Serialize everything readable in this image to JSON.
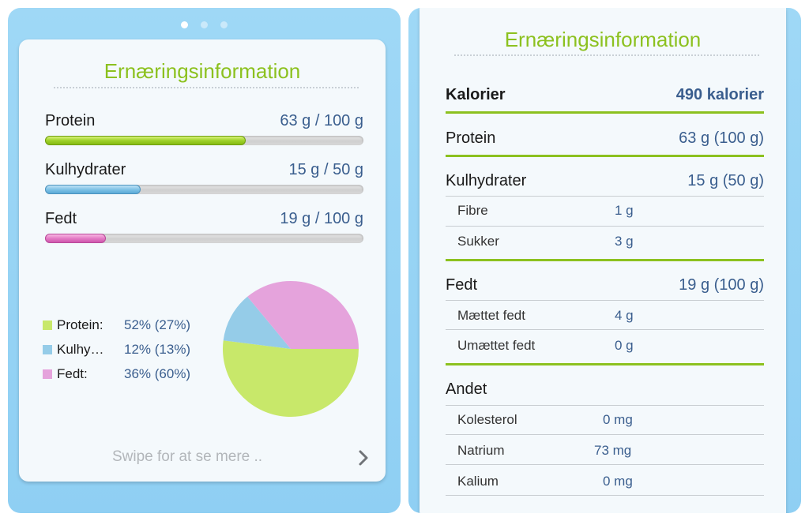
{
  "left": {
    "pager": {
      "count": 3,
      "active": 0
    },
    "title": "Ernæringsinformation",
    "bars": [
      {
        "label": "Protein",
        "value": "63 g / 100 g",
        "fraction": 0.63,
        "color": "#9fd22a"
      },
      {
        "label": "Kulhydrater",
        "value": "15 g / 50 g",
        "fraction": 0.3,
        "color": "#80c3e6"
      },
      {
        "label": "Fedt",
        "value": "19 g / 100 g",
        "fraction": 0.19,
        "color": "#e47cc6"
      }
    ],
    "legend": [
      {
        "name": "Protein:",
        "pct": "52% (27%)",
        "color": "#c8e86a"
      },
      {
        "name": "Kulhy…",
        "pct": "12% (13%)",
        "color": "#95cce8"
      },
      {
        "name": "Fedt:",
        "pct": "36% (60%)",
        "color": "#e5a3dc"
      }
    ],
    "swipe_text": "Swipe for at se mere .."
  },
  "chart_data": {
    "type": "pie",
    "slices": [
      {
        "name": "Protein",
        "value": 52,
        "color": "#c8e86a"
      },
      {
        "name": "Kulhydrater",
        "value": 12,
        "color": "#95cce8"
      },
      {
        "name": "Fedt",
        "value": 36,
        "color": "#e5a3dc"
      }
    ]
  },
  "right": {
    "title": "Ernæringsinformation",
    "kalorier": {
      "label": "Kalorier",
      "value": "490 kalorier"
    },
    "protein": {
      "label": "Protein",
      "value": "63 g (100 g)"
    },
    "kulhydrater": {
      "label": "Kulhydrater",
      "value": "15 g (50 g)",
      "sub": [
        {
          "label": "Fibre",
          "value": "1 g"
        },
        {
          "label": "Sukker",
          "value": "3 g"
        }
      ]
    },
    "fedt": {
      "label": "Fedt",
      "value": "19 g (100 g)",
      "sub": [
        {
          "label": "Mættet fedt",
          "value": "4 g"
        },
        {
          "label": "Umættet fedt",
          "value": "0 g"
        }
      ]
    },
    "andet": {
      "label": "Andet",
      "sub": [
        {
          "label": "Kolesterol",
          "value": "0 mg"
        },
        {
          "label": "Natrium",
          "value": "73 mg"
        },
        {
          "label": "Kalium",
          "value": "0 mg"
        }
      ]
    }
  }
}
